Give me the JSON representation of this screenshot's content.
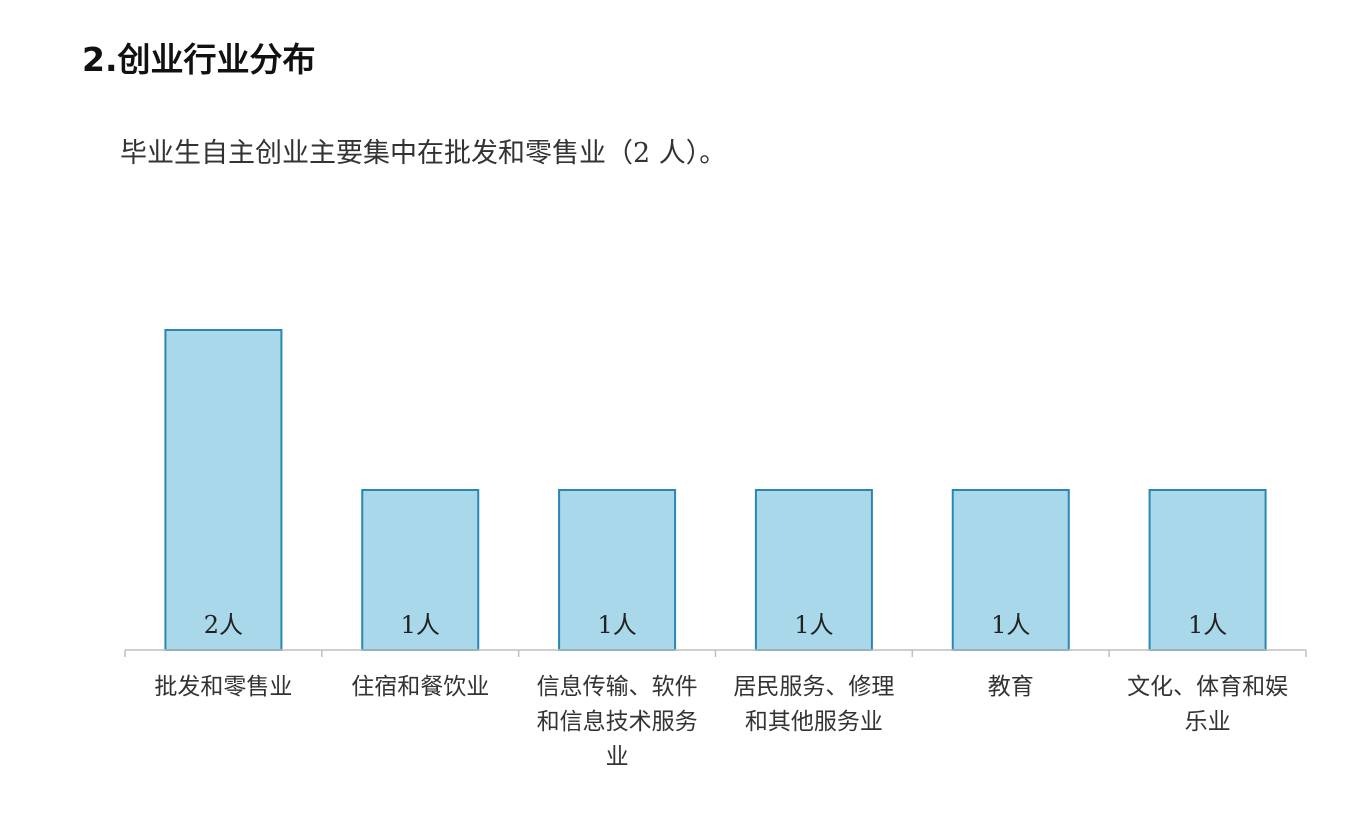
{
  "section_title": "2.创业行业分布",
  "intro_text": "毕业生自主创业主要集中在批发和零售业（2 人）。",
  "chart_data": {
    "type": "bar",
    "categories": [
      [
        "批发和零售业"
      ],
      [
        "住宿和餐饮业"
      ],
      [
        "信息传输、软件",
        "和信息技术服务",
        "业"
      ],
      [
        "居民服务、修理",
        "和其他服务业"
      ],
      [
        "教育"
      ],
      [
        "文化、体育和娱",
        "乐业"
      ]
    ],
    "values": [
      2,
      1,
      1,
      1,
      1,
      1
    ],
    "data_labels": [
      "2人",
      "1人",
      "1人",
      "1人",
      "1人",
      "1人"
    ],
    "ylim": [
      0,
      2.5
    ],
    "grid": false,
    "legend": "none",
    "colors": {
      "bar_fill": "#a9d8ea",
      "bar_stroke": "#2a86b5",
      "axis": "#bfbfbf"
    }
  }
}
